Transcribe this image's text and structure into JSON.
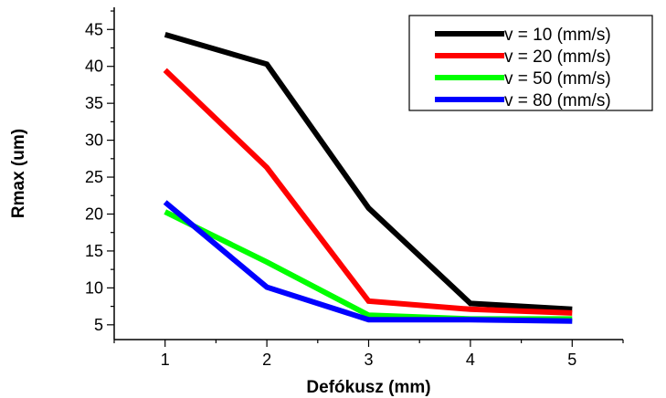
{
  "chart_data": {
    "type": "line",
    "title": "",
    "xlabel": "Defókusz (mm)",
    "ylabel": "Rmax (um)",
    "x": [
      1,
      2,
      3,
      4,
      5
    ],
    "xlim": [
      0.5,
      5.5
    ],
    "ylim": [
      3,
      48
    ],
    "xticks": [
      1,
      2,
      3,
      4,
      5
    ],
    "yticks": [
      5,
      10,
      15,
      20,
      25,
      30,
      35,
      40,
      45
    ],
    "grid": false,
    "legend_position": "top-right",
    "series": [
      {
        "name": "v = 10 (mm/s)",
        "color": "#000000",
        "values": [
          44.3,
          40.3,
          20.8,
          7.9,
          7.1
        ]
      },
      {
        "name": "v = 20 (mm/s)",
        "color": "#ff0000",
        "values": [
          39.5,
          26.3,
          8.2,
          7.1,
          6.6
        ]
      },
      {
        "name": "v = 50 (mm/s)",
        "color": "#00ff00",
        "values": [
          20.3,
          13.5,
          6.3,
          5.8,
          5.8
        ]
      },
      {
        "name": "v = 80 (mm/s)",
        "color": "#0000ff",
        "values": [
          21.6,
          10.1,
          5.7,
          5.7,
          5.5
        ]
      }
    ]
  }
}
